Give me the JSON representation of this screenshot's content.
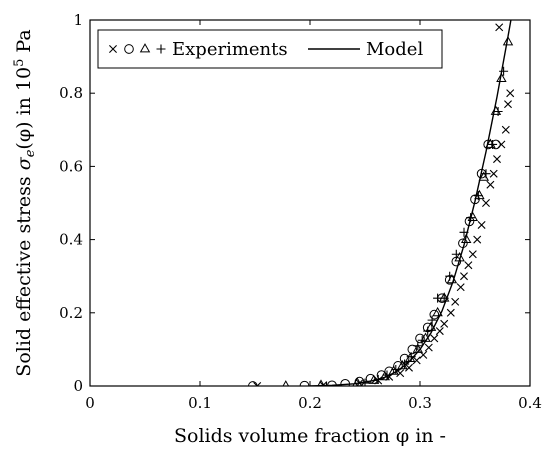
{
  "chart_data": {
    "type": "scatter",
    "xlabel": "Solids volume fraction φ in -",
    "ylabel_parts": [
      "Solid effective stress ",
      "σ",
      "e",
      "(φ) in 10",
      "5",
      " Pa"
    ],
    "xlim": [
      0,
      0.4
    ],
    "ylim": [
      0,
      1
    ],
    "x_ticks": [
      0,
      0.1,
      0.2,
      0.3,
      0.4
    ],
    "y_ticks": [
      0,
      0.2,
      0.4,
      0.6,
      0.8,
      1
    ],
    "x_tick_labels": [
      "0",
      "0.1",
      "0.2",
      "0.3",
      "0.4"
    ],
    "y_tick_labels": [
      "0",
      "0.2",
      "0.4",
      "0.6",
      "0.8",
      "1"
    ],
    "grid": false,
    "legend_position": "top",
    "legend": {
      "experiments_symbols": "× ○ △ +",
      "experiments_label": "Experiments",
      "model_label": "Model"
    },
    "series": [
      {
        "marker": "x",
        "points": [
          [
            0.152,
            0.0
          ],
          [
            0.212,
            0.002
          ],
          [
            0.245,
            0.008
          ],
          [
            0.262,
            0.015
          ],
          [
            0.272,
            0.025
          ],
          [
            0.282,
            0.035
          ],
          [
            0.29,
            0.05
          ],
          [
            0.297,
            0.07
          ],
          [
            0.303,
            0.085
          ],
          [
            0.308,
            0.105
          ],
          [
            0.313,
            0.13
          ],
          [
            0.318,
            0.15
          ],
          [
            0.322,
            0.17
          ],
          [
            0.328,
            0.2
          ],
          [
            0.332,
            0.23
          ],
          [
            0.337,
            0.27
          ],
          [
            0.34,
            0.3
          ],
          [
            0.344,
            0.33
          ],
          [
            0.348,
            0.36
          ],
          [
            0.352,
            0.4
          ],
          [
            0.356,
            0.44
          ],
          [
            0.36,
            0.5
          ],
          [
            0.364,
            0.55
          ],
          [
            0.367,
            0.58
          ],
          [
            0.37,
            0.62
          ],
          [
            0.374,
            0.66
          ],
          [
            0.378,
            0.7
          ],
          [
            0.372,
            0.98
          ],
          [
            0.382,
            0.8
          ],
          [
            0.38,
            0.77
          ]
        ]
      },
      {
        "marker": "o",
        "points": [
          [
            0.148,
            0.0
          ],
          [
            0.195,
            0.001
          ],
          [
            0.22,
            0.002
          ],
          [
            0.232,
            0.006
          ],
          [
            0.245,
            0.012
          ],
          [
            0.255,
            0.02
          ],
          [
            0.265,
            0.03
          ],
          [
            0.272,
            0.04
          ],
          [
            0.28,
            0.055
          ],
          [
            0.286,
            0.075
          ],
          [
            0.293,
            0.1
          ],
          [
            0.3,
            0.13
          ],
          [
            0.307,
            0.16
          ],
          [
            0.313,
            0.195
          ],
          [
            0.32,
            0.24
          ],
          [
            0.327,
            0.29
          ],
          [
            0.333,
            0.34
          ],
          [
            0.339,
            0.39
          ],
          [
            0.345,
            0.45
          ],
          [
            0.35,
            0.51
          ],
          [
            0.356,
            0.58
          ],
          [
            0.362,
            0.66
          ],
          [
            0.369,
            0.66
          ]
        ]
      },
      {
        "marker": "triangle",
        "points": [
          [
            0.178,
            0.0
          ],
          [
            0.21,
            0.002
          ],
          [
            0.243,
            0.008
          ],
          [
            0.258,
            0.015
          ],
          [
            0.268,
            0.025
          ],
          [
            0.276,
            0.04
          ],
          [
            0.284,
            0.055
          ],
          [
            0.291,
            0.075
          ],
          [
            0.298,
            0.1
          ],
          [
            0.305,
            0.13
          ],
          [
            0.31,
            0.16
          ],
          [
            0.316,
            0.2
          ],
          [
            0.322,
            0.24
          ],
          [
            0.329,
            0.29
          ],
          [
            0.336,
            0.35
          ],
          [
            0.342,
            0.4
          ],
          [
            0.348,
            0.46
          ],
          [
            0.354,
            0.52
          ],
          [
            0.358,
            0.57
          ],
          [
            0.364,
            0.66
          ],
          [
            0.369,
            0.75
          ],
          [
            0.374,
            0.84
          ],
          [
            0.38,
            0.94
          ]
        ]
      },
      {
        "marker": "plus",
        "points": [
          [
            0.215,
            0.0
          ],
          [
            0.25,
            0.008
          ],
          [
            0.262,
            0.018
          ],
          [
            0.27,
            0.03
          ],
          [
            0.278,
            0.045
          ],
          [
            0.286,
            0.06
          ],
          [
            0.292,
            0.08
          ],
          [
            0.298,
            0.11
          ],
          [
            0.302,
            0.125
          ],
          [
            0.307,
            0.15
          ],
          [
            0.311,
            0.18
          ],
          [
            0.316,
            0.24
          ],
          [
            0.322,
            0.24
          ],
          [
            0.327,
            0.3
          ],
          [
            0.333,
            0.36
          ],
          [
            0.34,
            0.42
          ],
          [
            0.346,
            0.46
          ],
          [
            0.353,
            0.52
          ],
          [
            0.36,
            0.58
          ],
          [
            0.366,
            0.66
          ],
          [
            0.371,
            0.75
          ],
          [
            0.376,
            0.86
          ]
        ]
      },
      {
        "type": "line",
        "points": [
          [
            0.2,
            0.0
          ],
          [
            0.22,
            0.002
          ],
          [
            0.24,
            0.006
          ],
          [
            0.26,
            0.016
          ],
          [
            0.27,
            0.026
          ],
          [
            0.28,
            0.042
          ],
          [
            0.29,
            0.066
          ],
          [
            0.3,
            0.1
          ],
          [
            0.31,
            0.145
          ],
          [
            0.32,
            0.205
          ],
          [
            0.33,
            0.285
          ],
          [
            0.34,
            0.385
          ],
          [
            0.35,
            0.505
          ],
          [
            0.36,
            0.64
          ],
          [
            0.37,
            0.79
          ],
          [
            0.38,
            0.955
          ],
          [
            0.385,
            1.04
          ]
        ]
      }
    ]
  }
}
